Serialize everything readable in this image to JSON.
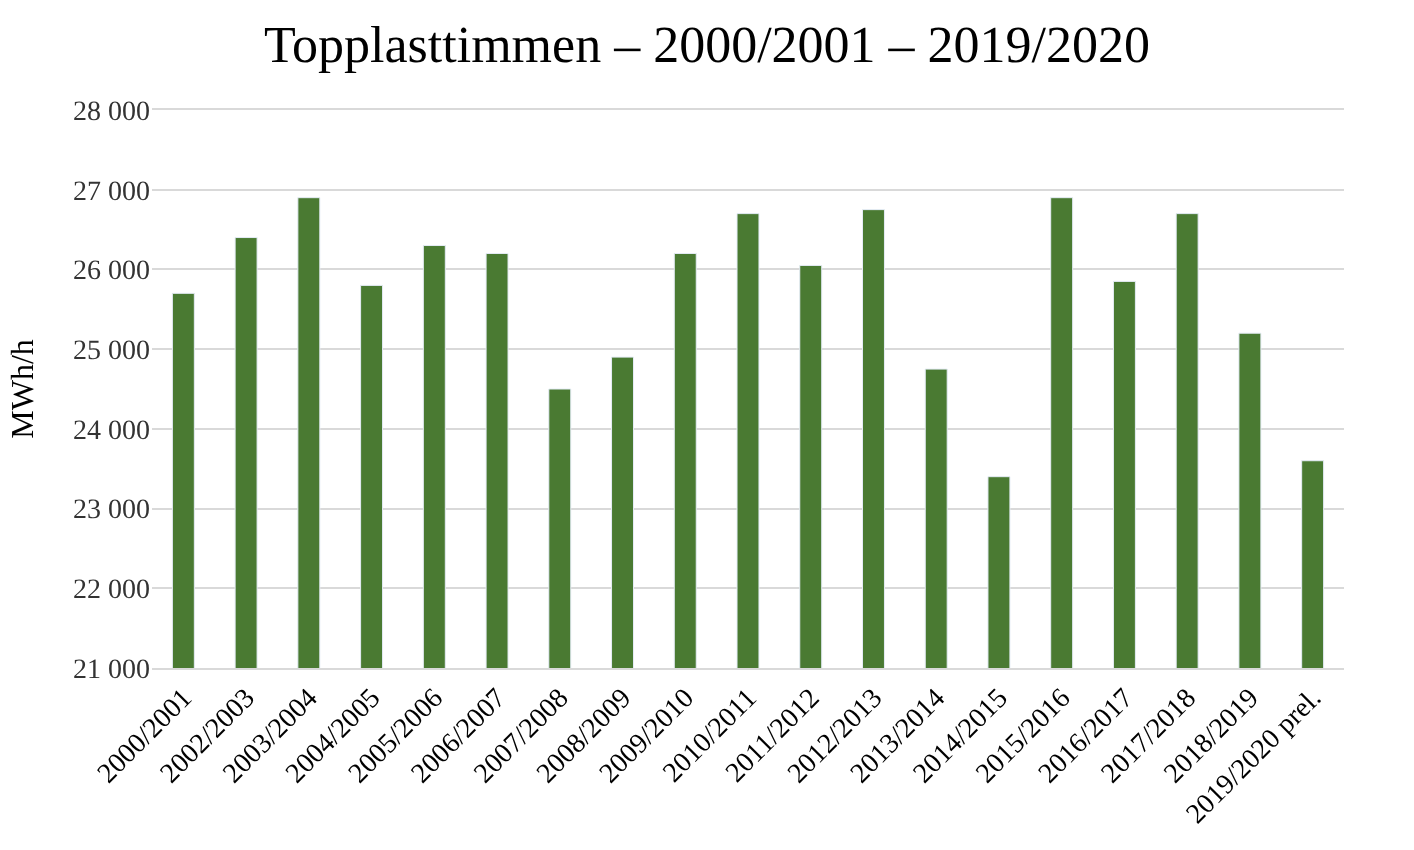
{
  "chart_data": {
    "type": "bar",
    "title": "Topplasttimmen – 2000/2001 – 2019/2020",
    "ylabel": "MWh/h",
    "categories": [
      "2000/2001",
      "2002/2003",
      "2003/2004",
      "2004/2005",
      "2005/2006",
      "2006/2007",
      "2007/2008",
      "2008/2009",
      "2009/2010",
      "2010/2011",
      "2011/2012",
      "2012/2013",
      "2013/2014",
      "2014/2015",
      "2015/2016",
      "2016/2017",
      "2017/2018",
      "2018/2019",
      "2019/2020 prel."
    ],
    "values": [
      25700,
      26400,
      26900,
      25800,
      26300,
      26200,
      24500,
      24900,
      26200,
      26700,
      26050,
      26750,
      24750,
      23400,
      26900,
      25850,
      26700,
      25200,
      23600
    ],
    "color": "#4a7a32",
    "ylim": [
      21000,
      28000
    ],
    "yticks": [
      {
        "value": 21000,
        "label": "21 000"
      },
      {
        "value": 22000,
        "label": "22 000"
      },
      {
        "value": 23000,
        "label": "23 000"
      },
      {
        "value": 24000,
        "label": "24 000"
      },
      {
        "value": 25000,
        "label": "25 000"
      },
      {
        "value": 26000,
        "label": "26 000"
      },
      {
        "value": 27000,
        "label": "27 000"
      },
      {
        "value": 28000,
        "label": "28 000"
      }
    ],
    "grid": "y"
  }
}
